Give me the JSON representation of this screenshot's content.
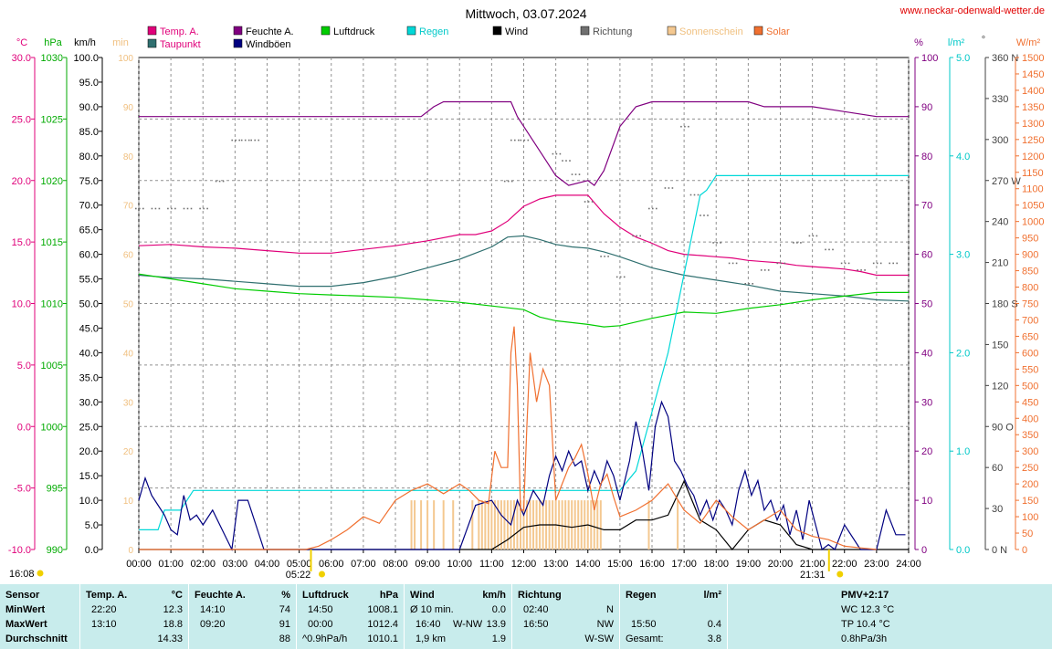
{
  "title": "Mittwoch, 03.07.2024",
  "site": "www.neckar-odenwald-wetter.de",
  "axis_units": {
    "temp": "°C",
    "pressure": "hPa",
    "wind": "km/h",
    "sun": "min",
    "humidity": "%",
    "rain": "l/m²",
    "direction": "°",
    "solar": "W/m²"
  },
  "legend": [
    {
      "label": "Temp. A.",
      "color": "#e0007a"
    },
    {
      "label": "Feuchte A.",
      "color": "#800080"
    },
    {
      "label": "Luftdruck",
      "color": "#00cc00"
    },
    {
      "label": "Regen",
      "color": "#00d8d8"
    },
    {
      "label": "Wind",
      "color": "#000000"
    },
    {
      "label": "Richtung",
      "color": "#707070"
    },
    {
      "label": "Sonnenschein",
      "color": "#f4c890"
    },
    {
      "label": "Solar",
      "color": "#f07030"
    },
    {
      "label": "Taupunkt",
      "color": "#2f6f6f"
    },
    {
      "label": "Windböen",
      "color": "#000080"
    }
  ],
  "sunrise": "05:22",
  "sunset": "21:31",
  "sun_marker_label": "16:08",
  "chart_data": {
    "type": "line",
    "title": "Mittwoch, 03.07.2024",
    "x_unit": "time of day (hours)",
    "xlim": [
      0,
      24
    ],
    "x_ticks": [
      "00:00",
      "01:00",
      "02:00",
      "03:00",
      "04:00",
      "05:00",
      "06:00",
      "07:00",
      "08:00",
      "09:00",
      "10:00",
      "11:00",
      "12:00",
      "13:00",
      "14:00",
      "15:00",
      "16:00",
      "17:00",
      "18:00",
      "19:00",
      "20:00",
      "21:00",
      "22:00",
      "23:00",
      "24:00"
    ],
    "axes": {
      "temp_c": {
        "range": [
          -10,
          30
        ],
        "ticks": [
          "30.0",
          "25.0",
          "20.0",
          "15.0",
          "10.0",
          "5.0",
          "0.0",
          "-5.0",
          "-10.0"
        ]
      },
      "pressure_hpa": {
        "range": [
          990,
          1030
        ],
        "ticks": [
          "1030",
          "1025",
          "1020",
          "1015",
          "1010",
          "1005",
          "1000",
          "995",
          "990"
        ]
      },
      "wind_kmh": {
        "range": [
          0,
          100
        ],
        "ticks": [
          "100.0",
          "95.0",
          "90.0",
          "85.0",
          "80.0",
          "75.0",
          "70.0",
          "65.0",
          "60.0",
          "55.0",
          "50.0",
          "45.0",
          "40.0",
          "35.0",
          "30.0",
          "25.0",
          "20.0",
          "15.0",
          "10.0",
          "5.0",
          "0.0"
        ]
      },
      "sun_min": {
        "range": [
          0,
          100
        ],
        "ticks": [
          "100",
          "90",
          "80",
          "70",
          "60",
          "50",
          "40",
          "30",
          "20",
          "10",
          "0"
        ]
      },
      "humidity_pct": {
        "range": [
          0,
          100
        ],
        "ticks": [
          "100",
          "90",
          "80",
          "70",
          "60",
          "50",
          "40",
          "30",
          "20",
          "10",
          "0"
        ]
      },
      "rain_lm2": {
        "range": [
          0,
          5
        ],
        "ticks": [
          "5.0",
          "4.0",
          "3.0",
          "2.0",
          "1.0",
          "0.0"
        ]
      },
      "direction_deg": {
        "range": [
          0,
          360
        ],
        "ticks": [
          "360 N",
          "330",
          "300",
          "270 W",
          "240",
          "210",
          "180 S",
          "150",
          "120",
          "90 O",
          "60",
          "30",
          "0 N"
        ]
      },
      "solar_wm2": {
        "range": [
          0,
          1500
        ],
        "ticks": [
          "1500",
          "1450",
          "1400",
          "1350",
          "1300",
          "1250",
          "1200",
          "1150",
          "1100",
          "1050",
          "1000",
          "950",
          "900",
          "850",
          "800",
          "750",
          "700",
          "650",
          "600",
          "550",
          "500",
          "450",
          "400",
          "350",
          "300",
          "250",
          "200",
          "150",
          "100",
          "50",
          "0"
        ]
      }
    },
    "series": [
      {
        "name": "Temp. A.",
        "axis": "temp_c",
        "color": "#e0007a",
        "x": [
          0,
          1,
          2,
          3,
          4,
          5,
          6,
          7,
          8,
          9,
          10,
          10.5,
          11,
          11.5,
          12,
          12.5,
          13,
          13.5,
          14,
          14.5,
          15,
          15.5,
          16,
          16.5,
          17,
          17.5,
          18,
          18.5,
          19,
          19.5,
          20,
          20.5,
          21,
          21.5,
          22,
          22.5,
          23,
          23.5,
          24
        ],
        "y": [
          14.7,
          14.8,
          14.6,
          14.5,
          14.3,
          14.1,
          14.1,
          14.4,
          14.7,
          15.1,
          15.6,
          15.6,
          15.9,
          16.7,
          17.9,
          18.5,
          18.8,
          18.8,
          18.8,
          17.3,
          16.2,
          15.4,
          14.9,
          14.3,
          14.0,
          13.9,
          13.8,
          13.7,
          13.5,
          13.4,
          13.3,
          13.1,
          13.0,
          12.9,
          12.8,
          12.6,
          12.3,
          12.3,
          12.3
        ]
      },
      {
        "name": "Taupunkt",
        "axis": "temp_c",
        "color": "#2f6f6f",
        "x": [
          0,
          1,
          2,
          3,
          4,
          5,
          6,
          7,
          8,
          9,
          10,
          11,
          11.5,
          12,
          12.5,
          13,
          13.5,
          14,
          14.5,
          15,
          16,
          17,
          18,
          19,
          20,
          21,
          22,
          23,
          24
        ],
        "y": [
          12.3,
          12.1,
          12.0,
          11.8,
          11.6,
          11.4,
          11.4,
          11.7,
          12.2,
          12.9,
          13.6,
          14.6,
          15.4,
          15.5,
          15.2,
          14.8,
          14.6,
          14.5,
          14.2,
          13.8,
          12.9,
          12.3,
          11.9,
          11.5,
          11.0,
          10.8,
          10.6,
          10.3,
          10.2
        ]
      },
      {
        "name": "Feuchte A.",
        "axis": "humidity_pct",
        "color": "#800080",
        "x": [
          0,
          1,
          2,
          3,
          4,
          5,
          6,
          7,
          8,
          8.8,
          9.2,
          9.5,
          10,
          11,
          11.6,
          11.8,
          12.3,
          12.7,
          13,
          13.4,
          14,
          14.2,
          14.5,
          15,
          15.5,
          16,
          16.5,
          17,
          18,
          19,
          19.5,
          20,
          21,
          22,
          23,
          24
        ],
        "y": [
          88,
          88,
          88,
          88,
          88,
          88,
          88,
          88,
          88,
          88,
          90,
          91,
          91,
          91,
          91,
          88,
          83,
          79,
          76,
          74,
          75,
          74,
          77,
          86,
          90,
          91,
          91,
          91,
          91,
          91,
          90,
          90,
          90,
          89,
          88,
          88
        ]
      },
      {
        "name": "Luftdruck",
        "axis": "pressure_hpa",
        "color": "#00cc00",
        "x": [
          0,
          1,
          2,
          3,
          4,
          5,
          6,
          7,
          8,
          9,
          10,
          11,
          12,
          12.5,
          13,
          14,
          14.5,
          15,
          16,
          17,
          18,
          19,
          20,
          21,
          22,
          23,
          24
        ],
        "y": [
          1012.4,
          1012.0,
          1011.6,
          1011.2,
          1011.0,
          1010.8,
          1010.7,
          1010.6,
          1010.5,
          1010.3,
          1010.1,
          1009.8,
          1009.5,
          1008.9,
          1008.6,
          1008.3,
          1008.1,
          1008.2,
          1008.8,
          1009.3,
          1009.2,
          1009.6,
          1009.9,
          1010.3,
          1010.6,
          1010.9,
          1010.9
        ]
      },
      {
        "name": "Regen",
        "axis": "rain_lm2",
        "color": "#00d8d8",
        "x": [
          0,
          0.6,
          0.8,
          1.3,
          1.7,
          15,
          15.5,
          16,
          16.5,
          17,
          17.5,
          17.7,
          18,
          24
        ],
        "y": [
          0.2,
          0.2,
          0.4,
          0.4,
          0.6,
          0.6,
          0.8,
          1.4,
          2.0,
          2.8,
          3.6,
          3.65,
          3.8,
          3.8
        ]
      },
      {
        "name": "Wind",
        "axis": "wind_kmh",
        "color": "#000000",
        "x": [
          0,
          1,
          2,
          3,
          4,
          5,
          6,
          7,
          8,
          9,
          10,
          11,
          11.5,
          12,
          12.5,
          13,
          13.5,
          14,
          14.5,
          15,
          15.5,
          16,
          16.5,
          17,
          17.5,
          18,
          18.5,
          19,
          19.5,
          20,
          20.5,
          21,
          22,
          23,
          24
        ],
        "y": [
          0,
          0,
          0,
          0,
          0,
          0,
          0,
          0,
          0,
          0,
          0,
          0,
          2,
          4.5,
          5,
          5,
          4.5,
          5,
          4,
          4,
          6,
          6,
          7,
          13.9,
          6,
          4,
          0,
          4,
          6,
          5,
          1,
          0,
          0,
          0,
          0
        ]
      },
      {
        "name": "Windböen",
        "axis": "wind_kmh",
        "color": "#000080",
        "x": [
          0,
          0.2,
          0.4,
          0.6,
          0.8,
          1,
          1.2,
          1.4,
          1.6,
          1.8,
          2,
          2.3,
          2.6,
          2.9,
          3.1,
          3.4,
          3.7,
          3.9,
          4.1,
          4.5,
          5,
          6,
          7,
          8,
          9,
          10,
          10.5,
          11,
          11.3,
          11.6,
          11.8,
          12,
          12.3,
          12.6,
          12.8,
          13,
          13.2,
          13.4,
          13.6,
          13.8,
          14,
          14.2,
          14.4,
          14.6,
          14.8,
          15,
          15.3,
          15.5,
          15.7,
          15.9,
          16.1,
          16.3,
          16.5,
          16.7,
          16.9,
          17.1,
          17.3,
          17.5,
          17.7,
          17.9,
          18.1,
          18.3,
          18.5,
          18.7,
          18.9,
          19.1,
          19.3,
          19.5,
          19.7,
          19.9,
          20.1,
          20.3,
          20.5,
          20.7,
          20.9,
          21.1,
          21.3,
          21.5,
          21.7,
          22,
          22.5,
          23,
          23.3,
          23.6,
          23.9
        ],
        "y": [
          10,
          14.5,
          11,
          9,
          7,
          4,
          3,
          11,
          6,
          7,
          5,
          8,
          4,
          0,
          10,
          10,
          4,
          0,
          0,
          0,
          0,
          0,
          0,
          0,
          0,
          0,
          9,
          10,
          7,
          5,
          10,
          7,
          12,
          9,
          15,
          19,
          16,
          20,
          17,
          18,
          12,
          16,
          13,
          18,
          15,
          10,
          18,
          26,
          20,
          12,
          25,
          30,
          27,
          18,
          16,
          13,
          11,
          7,
          10,
          6,
          10,
          8,
          5,
          12,
          16,
          11,
          14,
          8,
          10,
          6,
          9,
          3,
          8,
          2,
          10,
          5,
          0,
          1,
          0,
          5,
          0,
          0,
          8,
          3,
          3
        ]
      },
      {
        "name": "Richtung",
        "axis": "direction_deg",
        "color": "#707070",
        "x": [
          0,
          0.5,
          1,
          1.5,
          2,
          2.5,
          3,
          3.3,
          3.6,
          11.5,
          11.7,
          12,
          13,
          13.3,
          13.6,
          14,
          14.5,
          15,
          15.5,
          16,
          16.5,
          17,
          17.3,
          17.6,
          18,
          18.5,
          19,
          19.5,
          20,
          20.5,
          21,
          21.5,
          22,
          22.5,
          23,
          23.5
        ],
        "y": [
          250,
          250,
          250,
          250,
          250,
          270,
          300,
          300,
          300,
          270,
          300,
          300,
          290,
          285,
          275,
          255,
          215,
          200,
          230,
          250,
          265,
          310,
          260,
          245,
          225,
          210,
          195,
          205,
          210,
          225,
          230,
          220,
          210,
          205,
          210,
          210
        ]
      },
      {
        "name": "Solar",
        "axis": "solar_wm2",
        "color": "#f07030",
        "x": [
          0,
          5.2,
          5.6,
          6,
          6.5,
          7,
          7.5,
          8,
          8.5,
          9,
          9.5,
          10,
          10.3,
          10.6,
          10.9,
          11.1,
          11.3,
          11.5,
          11.6,
          11.7,
          11.8,
          11.9,
          12,
          12.1,
          12.2,
          12.4,
          12.6,
          12.8,
          13,
          13.2,
          13.4,
          13.6,
          13.8,
          14,
          14.2,
          14.4,
          14.6,
          14.8,
          15,
          15.5,
          16,
          16.5,
          17,
          17.5,
          18,
          18.5,
          19,
          19.5,
          20,
          20.5,
          21,
          21.5,
          22,
          22.5,
          23
        ],
        "y": [
          0,
          0,
          10,
          30,
          60,
          100,
          80,
          150,
          180,
          200,
          170,
          200,
          180,
          150,
          140,
          300,
          250,
          250,
          600,
          680,
          500,
          120,
          120,
          380,
          600,
          450,
          550,
          500,
          150,
          200,
          250,
          280,
          320,
          230,
          120,
          200,
          230,
          160,
          100,
          120,
          150,
          200,
          120,
          80,
          150,
          100,
          60,
          90,
          120,
          60,
          40,
          30,
          10,
          5,
          0
        ]
      },
      {
        "name": "Sonnenschein",
        "axis": "sun_min",
        "color": "#f4c890",
        "bars_x": [
          8.5,
          8.6,
          8.8,
          9.0,
          9.2,
          9.5,
          9.8,
          10.4,
          10.6,
          10.7,
          10.8,
          10.9,
          11.0,
          11.1,
          11.2,
          11.3,
          11.4,
          11.5,
          11.6,
          11.7,
          11.8,
          11.9,
          12.0,
          12.1,
          12.2,
          12.3,
          12.4,
          12.5,
          12.6,
          12.7,
          12.8,
          12.9,
          13.0,
          13.1,
          13.2,
          13.3,
          13.4,
          13.5,
          13.6,
          13.7,
          13.8,
          13.9,
          14.0,
          14.1,
          14.2,
          14.3,
          14.4,
          15.9,
          16.8
        ],
        "bars_y": [
          10,
          10,
          10,
          10,
          10,
          10,
          10,
          10,
          10,
          10,
          10,
          10,
          10,
          10,
          10,
          10,
          10,
          10,
          10,
          10,
          10,
          10,
          10,
          10,
          10,
          10,
          10,
          10,
          10,
          10,
          10,
          10,
          10,
          10,
          10,
          10,
          10,
          10,
          10,
          10,
          10,
          10,
          10,
          10,
          10,
          10,
          10,
          10,
          10
        ]
      }
    ]
  },
  "panel": {
    "sensor": {
      "header": "Sensor",
      "rows": [
        "MinWert",
        "MaxWert",
        "Durchschnitt"
      ]
    },
    "temp": {
      "header": "Temp. A.",
      "unit": "°C",
      "min_time": "22:20",
      "min": "12.3",
      "max_time": "13:10",
      "max": "18.8",
      "avg": "14.33"
    },
    "humidity": {
      "header": "Feuchte A.",
      "unit": "%",
      "min_time": "14:10",
      "min": "74",
      "max_time": "09:20",
      "max": "91",
      "avg": "88"
    },
    "pressure": {
      "header": "Luftdruck",
      "unit": "hPa",
      "min_time": "14:50",
      "min": "1008.1",
      "max_time": "00:00",
      "max": "1012.4",
      "trend": "^0.9hPa/h",
      "avg": "1010.1"
    },
    "wind": {
      "header": "Wind",
      "unit": "km/h",
      "min_label": "Ø 10 min.",
      "min": "0.0",
      "max_time": "16:40",
      "max_dir": "W-NW",
      "max": "13.9",
      "dist": "1,9 km",
      "avg": "1.9"
    },
    "direction": {
      "header": "Richtung",
      "min_time": "02:40",
      "min": "N",
      "max_time": "16:50",
      "max": "NW",
      "avg": "W-SW"
    },
    "rain": {
      "header": "Regen",
      "unit": "l/m²",
      "max_time": "15:50",
      "max": "0.4",
      "total_label": "Gesamt:",
      "total": "3.8"
    },
    "extra": {
      "header": "PMV+2:17",
      "r1": "WC 12.3 °C",
      "r2": "TP 10.4 °C",
      "r3": "0.8hPa/3h"
    }
  }
}
